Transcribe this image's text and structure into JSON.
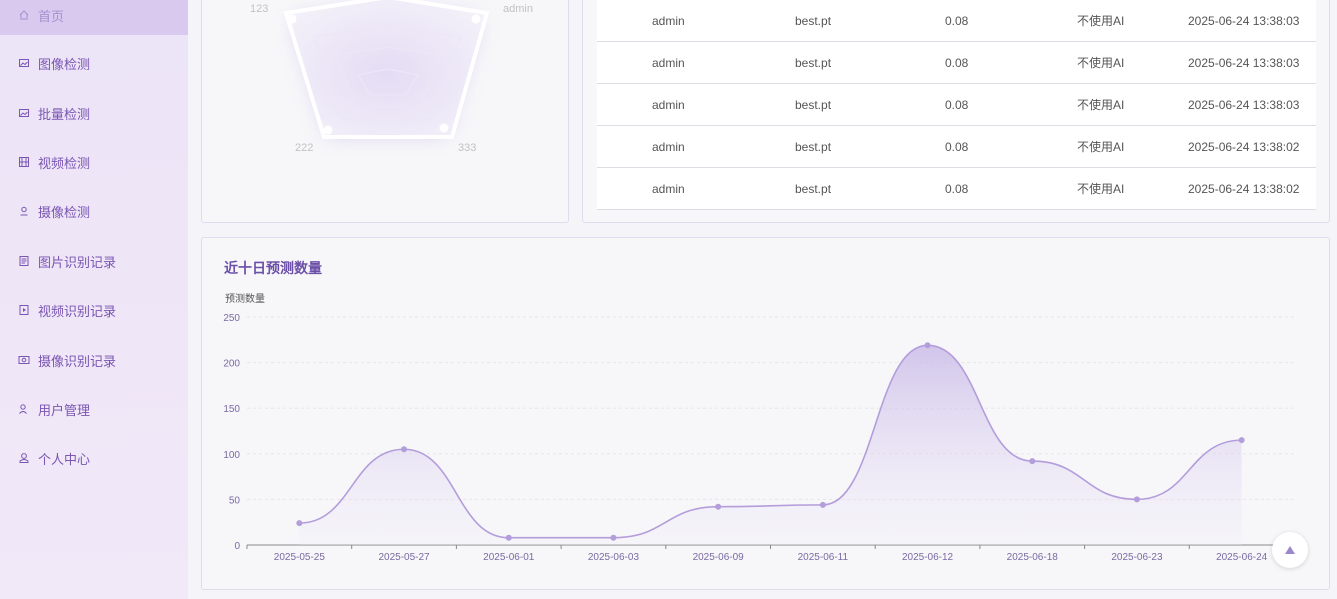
{
  "sidebar": {
    "items": [
      {
        "label": "首页",
        "icon": "home-icon",
        "active": true
      },
      {
        "label": "图像检测",
        "icon": "image-icon"
      },
      {
        "label": "批量检测",
        "icon": "images-icon"
      },
      {
        "label": "视频检测",
        "icon": "video-icon"
      },
      {
        "label": "摄像检测",
        "icon": "camera-icon"
      },
      {
        "label": "图片识别记录",
        "icon": "image-record-icon"
      },
      {
        "label": "视频识别记录",
        "icon": "video-record-icon"
      },
      {
        "label": "摄像识别记录",
        "icon": "camera-record-icon"
      },
      {
        "label": "用户管理",
        "icon": "user-manage-icon"
      },
      {
        "label": "个人中心",
        "icon": "profile-icon"
      }
    ]
  },
  "radar": {
    "labels": [
      "123",
      "admin",
      "222",
      "333"
    ]
  },
  "records": {
    "rows": [
      {
        "user": "admin",
        "model": "best.pt",
        "conf": "0.08",
        "ai": "不使用AI",
        "time": "2025-06-24 13:38:03"
      },
      {
        "user": "admin",
        "model": "best.pt",
        "conf": "0.08",
        "ai": "不使用AI",
        "time": "2025-06-24 13:38:03"
      },
      {
        "user": "admin",
        "model": "best.pt",
        "conf": "0.08",
        "ai": "不使用AI",
        "time": "2025-06-24 13:38:03"
      },
      {
        "user": "admin",
        "model": "best.pt",
        "conf": "0.08",
        "ai": "不使用AI",
        "time": "2025-06-24 13:38:02"
      },
      {
        "user": "admin",
        "model": "best.pt",
        "conf": "0.08",
        "ai": "不使用AI",
        "time": "2025-06-24 13:38:02"
      }
    ]
  },
  "chart_data": {
    "type": "area",
    "title": "近十日预测数量",
    "ylabel": "预测数量",
    "xlabel": "",
    "x": [
      "2025-05-25",
      "2025-05-27",
      "2025-06-01",
      "2025-06-03",
      "2025-06-09",
      "2025-06-11",
      "2025-06-12",
      "2025-06-18",
      "2025-06-23",
      "2025-06-24"
    ],
    "series": [
      {
        "values": [
          24,
          105,
          8,
          8,
          42,
          44,
          219,
          92,
          50,
          115
        ]
      }
    ],
    "ylim": [
      0,
      250
    ],
    "yticks": [
      "0",
      "50",
      "100",
      "150",
      "200",
      "250"
    ],
    "grid": true,
    "smooth": true,
    "line_color": "#b39ddb"
  },
  "colors": {
    "accent": "#7a55b3",
    "sidebar_active": "#d9c9ef"
  }
}
